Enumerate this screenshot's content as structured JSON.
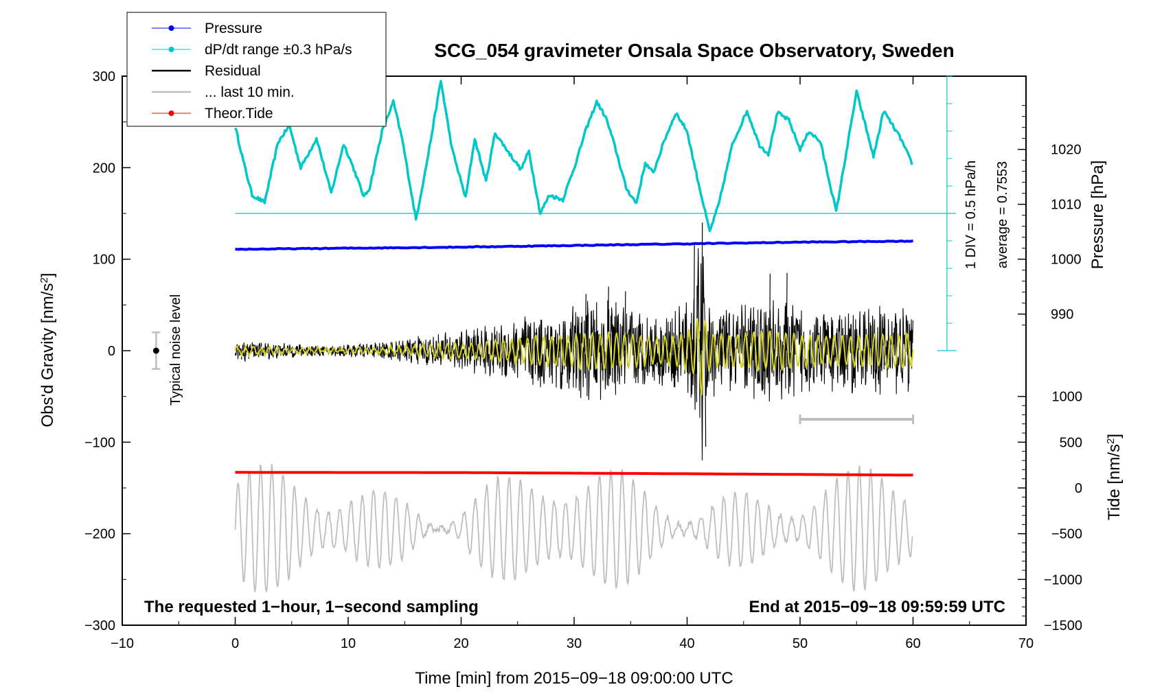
{
  "chart_data": {
    "type": "line",
    "title": "SCG_054 gravimeter Onsala Space Observatory, Sweden",
    "xlabel": "Time [min] from 2015−09−18 09:00:00 UTC",
    "ylabel_left": "Obs'd Gravity [nm/s",
    "ylabel_left_sup": "2",
    "ylabel_left_end": "]",
    "ylabel_right_pressure": "Pressure [hPa]",
    "ylabel_right_tide": "Tide [nm/s",
    "ylabel_right_tide_sup": "2",
    "ylabel_right_tide_end": "]",
    "xlim": [
      -10,
      70
    ],
    "ylim_left": [
      -300,
      300
    ],
    "x_ticks": [
      "−10",
      "0",
      "10",
      "20",
      "30",
      "40",
      "50",
      "60",
      "70"
    ],
    "y_ticks_left": [
      "−300",
      "−200",
      "−100",
      "0",
      "100",
      "200",
      "300"
    ],
    "pressure_ticks": [
      "990",
      "1000",
      "1010",
      "1020"
    ],
    "tide_ticks": [
      "−1500",
      "−1000",
      "−500",
      "0",
      "500",
      "1000"
    ],
    "legend_position": "top-left",
    "legend": [
      {
        "label": "Pressure",
        "color": "#0000ff",
        "marker": true
      },
      {
        "label": "dP/dt range ±0.3 hPa/s",
        "color": "#00c8c8",
        "marker": true
      },
      {
        "label": "Residual",
        "color": "#000000",
        "marker": false
      },
      {
        "label": "... last 10 min.",
        "color": "#bebebe",
        "marker": false
      },
      {
        "label": "Theor.Tide",
        "color": "#ff0000",
        "marker": true
      }
    ],
    "note_left": "The requested 1−hour, 1−second sampling",
    "note_right": "End at 2015−09−18 09:59:59 UTC",
    "noise_label": "Typical noise level",
    "dpdt_scale_label": "1 DIV = 0.5 hPa/h",
    "dpdt_average_label": "average = 0.7553",
    "series": [
      {
        "name": "Pressure",
        "color": "#0000ff",
        "axis": "pressure_hPa",
        "x": [
          0,
          10,
          20,
          30,
          40,
          50,
          60
        ],
        "values": [
          1001.8,
          1002.0,
          1002.2,
          1002.5,
          1002.8,
          1003.1,
          1003.3
        ]
      },
      {
        "name": "dP/dt range ±0.3 hPa/s",
        "color": "#00c8c8",
        "axis": "gravity_display",
        "baseline": 150,
        "x": [
          0,
          0.8,
          1.5,
          2.6,
          3.8,
          4.8,
          5.8,
          7.2,
          8.5,
          9.6,
          10.3,
          11.4,
          11.9,
          13.0,
          14.0,
          14.8,
          16.0,
          17.0,
          18.2,
          19.2,
          20.4,
          21.2,
          22.2,
          23.0,
          24.3,
          25.3,
          26.0,
          27.0,
          27.8,
          29.0,
          30.2,
          31.0,
          32.0,
          32.8,
          33.5,
          34.6,
          35.5,
          36.3,
          37.0,
          38.0,
          39.0,
          40.0,
          40.7,
          42.0,
          42.8,
          44.0,
          45.3,
          46.4,
          47.2,
          48.0,
          49.0,
          50.0,
          50.8,
          51.8,
          53.2,
          54.0,
          55.0,
          55.7,
          56.5,
          57.4,
          58.1,
          58.9,
          60.0
        ],
        "values": [
          245,
          203,
          170,
          162,
          228,
          246,
          200,
          232,
          172,
          226,
          205,
          168,
          178,
          240,
          272,
          230,
          143,
          208,
          295,
          220,
          167,
          232,
          185,
          238,
          215,
          198,
          218,
          150,
          170,
          165,
          207,
          240,
          272,
          255,
          228,
          178,
          161,
          205,
          194,
          230,
          260,
          240,
          200,
          130,
          160,
          225,
          262,
          225,
          215,
          260,
          252,
          220,
          240,
          228,
          152,
          210,
          283,
          250,
          212,
          262,
          248,
          232,
          202
        ]
      },
      {
        "name": "Residual",
        "color": "#000000",
        "axis": "gravity",
        "envelope_x": [
          0,
          8,
          13,
          18,
          22,
          25,
          27,
          29,
          31,
          33,
          35,
          37,
          39,
          40.6,
          41.0,
          41.3,
          41.6,
          42.0,
          44,
          46,
          48,
          50,
          52,
          54,
          56,
          58,
          60
        ],
        "envelope_y": [
          12,
          6,
          10,
          20,
          28,
          38,
          45,
          48,
          58,
          56,
          50,
          40,
          45,
          70,
          120,
          140,
          95,
          55,
          48,
          60,
          58,
          52,
          45,
          48,
          50,
          52,
          50
        ],
        "spikes_x": [
          31,
          33,
          34.5,
          40.6,
          41.3,
          41.6,
          47.3,
          48.8
        ],
        "spikes_y": [
          62,
          70,
          65,
          118,
          140,
          -105,
          84,
          85
        ]
      },
      {
        "name": "... last 10 min.",
        "color": "#bebebe",
        "axis": "gravity_display",
        "baseline": -195,
        "range_bar_x": [
          50,
          60
        ],
        "range_bar_y": -75
      },
      {
        "name": "Theor.Tide",
        "color": "#ff0000",
        "axis": "tide_nms2",
        "x": [
          0,
          20,
          40,
          60
        ],
        "values": [
          170,
          168,
          155,
          140
        ]
      }
    ],
    "noise_bar": {
      "x": -7,
      "center": 0,
      "half_range": 20
    }
  }
}
